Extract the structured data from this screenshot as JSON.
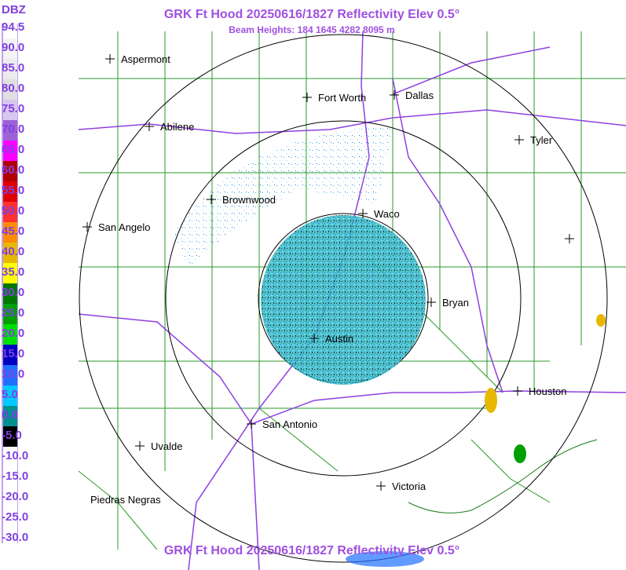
{
  "header": {
    "title": "GRK Ft Hood 20250616/1827 Reflectivity Elev 0.5°",
    "subtitle": "Beam Heights: 184 1645 4282 8095 m",
    "footer": "GRK Ft Hood 20250616/1827 Reflectivity Elev 0.5°"
  },
  "legend": {
    "unit": "DBZ",
    "scale": [
      {
        "label": "94.5",
        "color": "#ffffff"
      },
      {
        "label": "90.0",
        "color": "#f4f4f4"
      },
      {
        "label": "85.0",
        "color": "#ececec"
      },
      {
        "label": "80.0",
        "color": "#e0e0e0"
      },
      {
        "label": "75.0",
        "color": "#d8c8f0"
      },
      {
        "label": "70.0",
        "color": "#a060d8"
      },
      {
        "label": "65.0",
        "color": "#ff00ff"
      },
      {
        "label": "60.0",
        "color": "#b00000"
      },
      {
        "label": "55.0",
        "color": "#e00000"
      },
      {
        "label": "50.0",
        "color": "#ff3030"
      },
      {
        "label": "45.0",
        "color": "#ff8c00"
      },
      {
        "label": "40.0",
        "color": "#e8b800"
      },
      {
        "label": "35.0",
        "color": "#ffff00"
      },
      {
        "label": "30.0",
        "color": "#007800"
      },
      {
        "label": "25.0",
        "color": "#00a000"
      },
      {
        "label": "20.0",
        "color": "#00e000"
      },
      {
        "label": "15.0",
        "color": "#0000c0"
      },
      {
        "label": "10.0",
        "color": "#2070ff"
      },
      {
        "label": "5.0",
        "color": "#00c8ff"
      },
      {
        "label": "0.0",
        "color": "#009090"
      },
      {
        "label": "-5.0",
        "color": "#000000"
      },
      {
        "label": "-10.0",
        "color": "#ffffff"
      },
      {
        "label": "-15.0",
        "color": "#ffffff"
      },
      {
        "label": "-20.0",
        "color": "#ffffff"
      },
      {
        "label": "-25.0",
        "color": "#ffffff"
      },
      {
        "label": "-30.0",
        "color": "#ffffff"
      }
    ]
  },
  "cities": [
    {
      "name": "Aspermont"
    },
    {
      "name": "Abilene"
    },
    {
      "name": "Fort Worth"
    },
    {
      "name": "Dallas"
    },
    {
      "name": "Tyler"
    },
    {
      "name": "Brownwood"
    },
    {
      "name": "San Angelo"
    },
    {
      "name": "Waco"
    },
    {
      "name": "Bryan"
    },
    {
      "name": "Austin"
    },
    {
      "name": "Houston"
    },
    {
      "name": "San Antonio"
    },
    {
      "name": "Uvalde"
    },
    {
      "name": "Victoria"
    },
    {
      "name": "Piedras Negras"
    }
  ]
}
